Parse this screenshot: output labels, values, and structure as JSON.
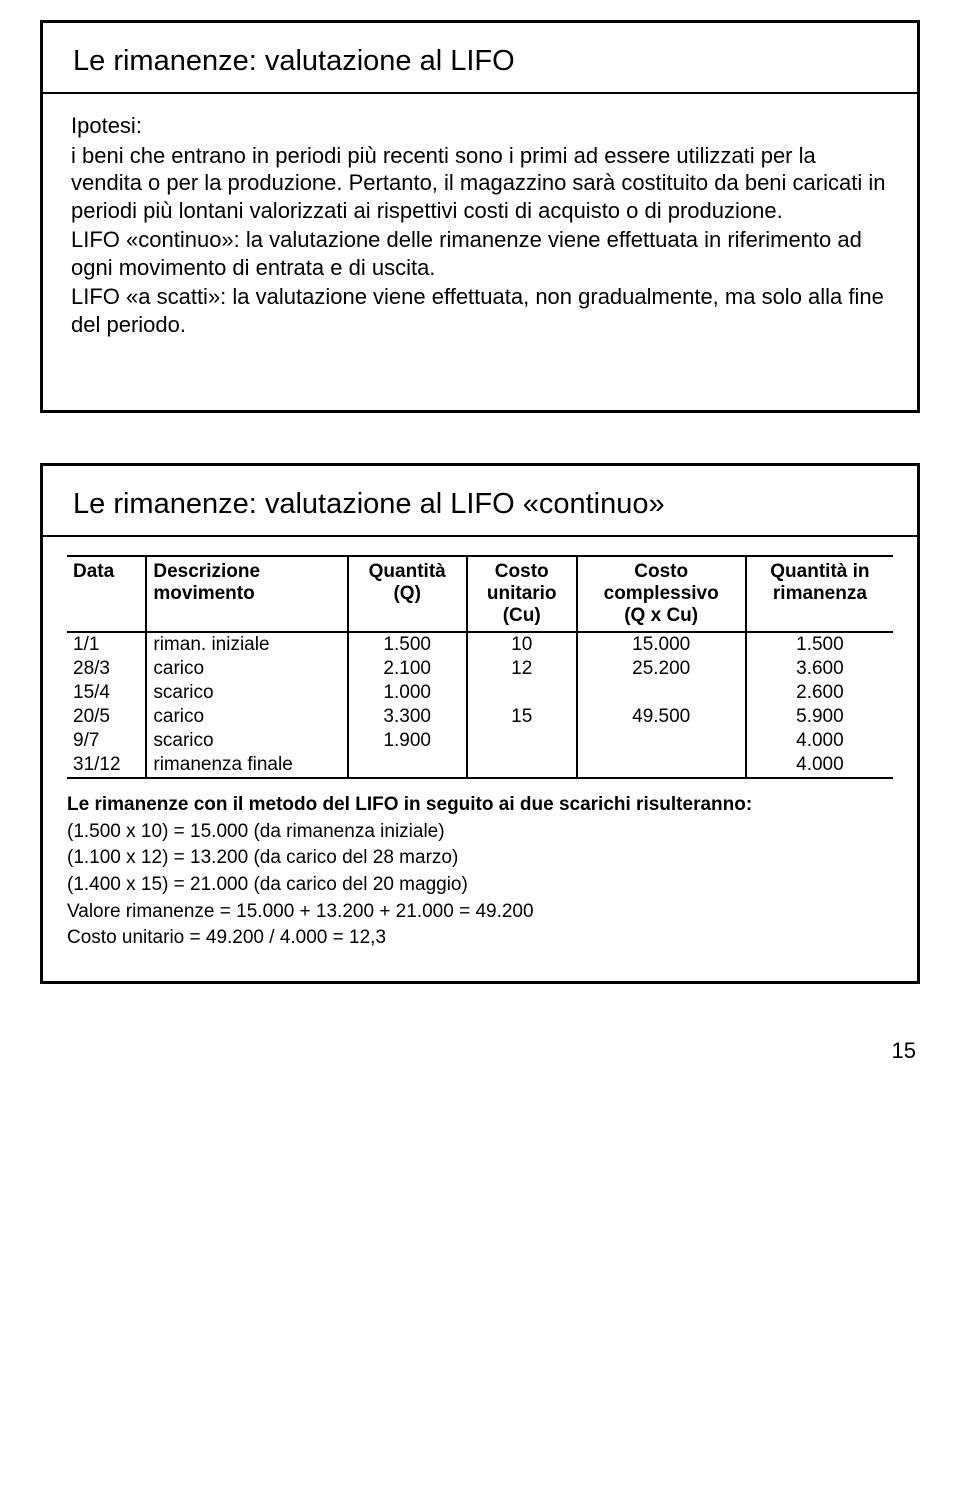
{
  "slide1": {
    "title": "Le rimanenze: valutazione al LIFO",
    "p1_label": "Ipotesi:",
    "p1_text": "i beni che entrano in periodi più recenti sono i primi ad essere utilizzati per la vendita o per la produzione. Pertanto, il magazzino sarà costituito da beni caricati in periodi più lontani valorizzati ai rispettivi costi di acquisto o di produzione.",
    "p2": "LIFO «continuo»: la valutazione delle rimanenze viene effettuata in riferimento ad ogni movimento di entrata e di uscita.",
    "p3": "LIFO «a scatti»: la valutazione viene effettuata, non gradualmente, ma solo alla fine del periodo."
  },
  "slide2": {
    "title": "Le rimanenze: valutazione al LIFO «continuo»",
    "headers": {
      "c1": "Data",
      "c2a": "Descrizione",
      "c2b": "movimento",
      "c3a": "Quantità",
      "c3b": "(Q)",
      "c4a": "Costo",
      "c4b": "unitario",
      "c4c": "(Cu)",
      "c5a": "Costo",
      "c5b": "complessivo",
      "c5c": "(Q x Cu)",
      "c6a": "Quantità in",
      "c6b": "rimanenza"
    },
    "rows": [
      {
        "d": "1/1",
        "desc": "riman. iniziale",
        "q": "1.500",
        "cu": "10",
        "cc": "15.000",
        "qr": "1.500"
      },
      {
        "d": "28/3",
        "desc": "carico",
        "q": "2.100",
        "cu": "12",
        "cc": "25.200",
        "qr": "3.600"
      },
      {
        "d": "15/4",
        "desc": "scarico",
        "q": "1.000",
        "cu": "",
        "cc": "",
        "qr": "2.600"
      },
      {
        "d": "20/5",
        "desc": "carico",
        "q": "3.300",
        "cu": "15",
        "cc": "49.500",
        "qr": "5.900"
      },
      {
        "d": "9/7",
        "desc": "scarico",
        "q": "1.900",
        "cu": "",
        "cc": "",
        "qr": "4.000"
      },
      {
        "d": "31/12",
        "desc": "rimanenza finale",
        "q": "",
        "cu": "",
        "cc": "",
        "qr": "4.000"
      }
    ],
    "note_lead": "Le rimanenze con il metodo del LIFO in seguito ai due scarichi risulteranno:",
    "n1": "(1.500 x 10) = 15.000 (da rimanenza iniziale)",
    "n2": "(1.100 x 12) = 13.200 (da carico del 28 marzo)",
    "n3": "(1.400 x 15) = 21.000 (da carico del 20 maggio)",
    "n4": "Valore rimanenze = 15.000 + 13.200 + 21.000 = 49.200",
    "n5": "Costo unitario = 49.200 / 4.000 = 12,3"
  },
  "page_number": "15"
}
